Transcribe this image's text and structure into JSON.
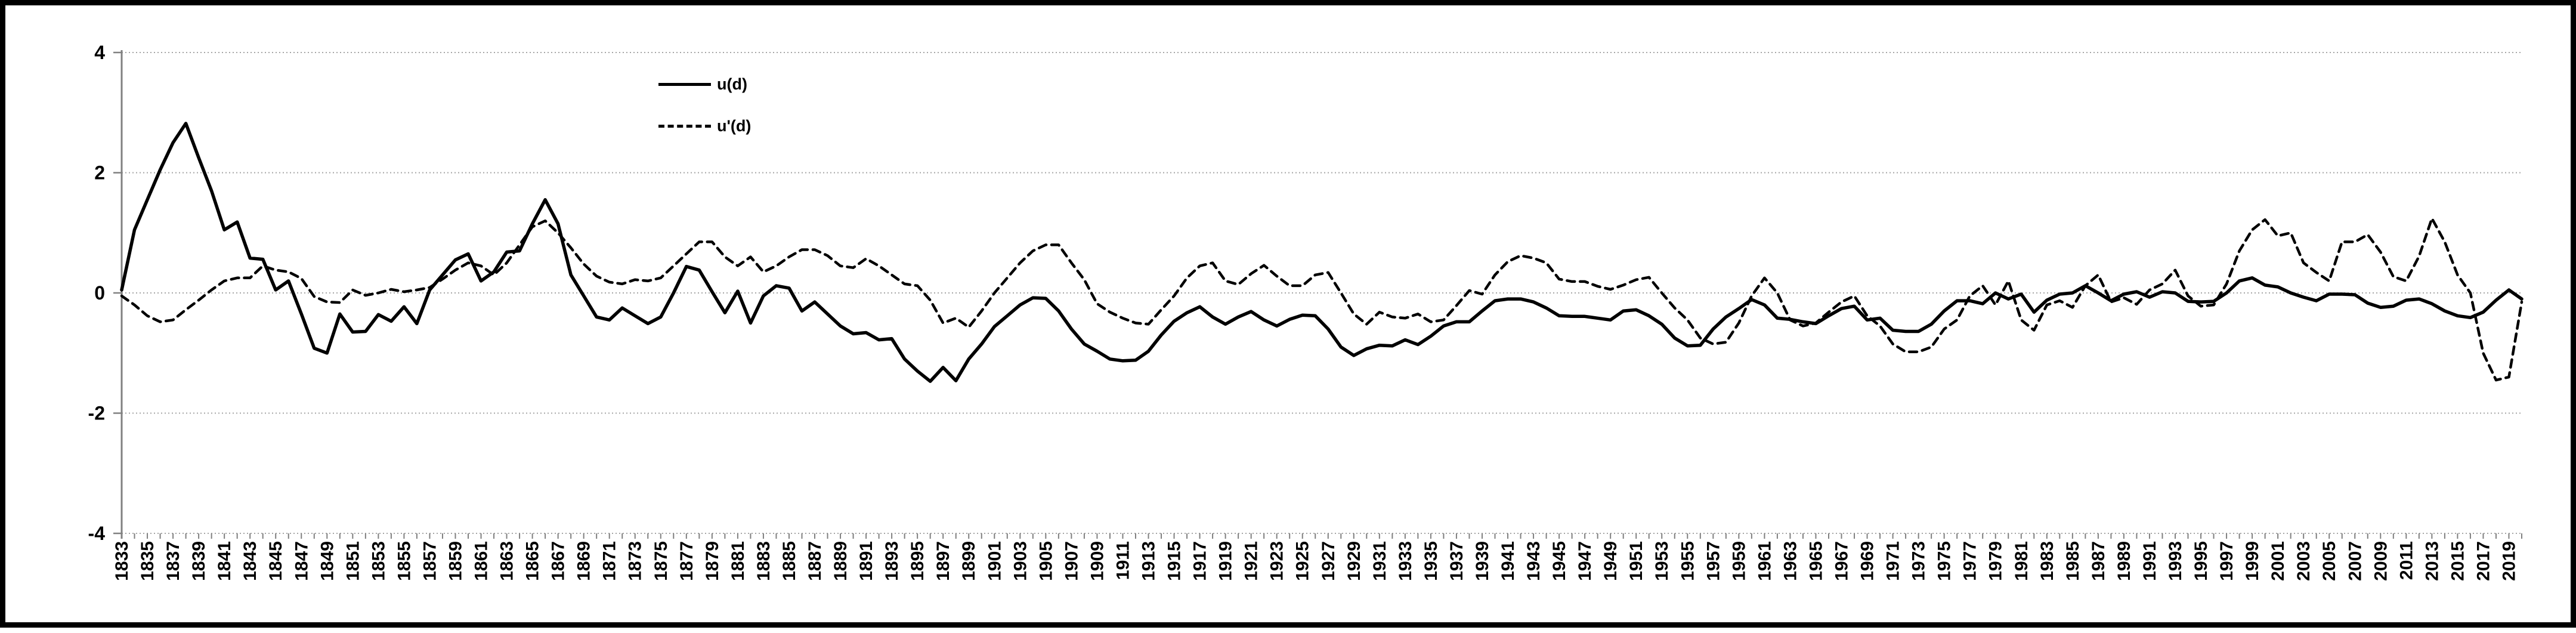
{
  "chart_data": {
    "type": "line",
    "title": "",
    "xlabel": "",
    "ylabel": "",
    "x_range": [
      1833,
      2020
    ],
    "x_step": 1,
    "ylim": [
      -4,
      4
    ],
    "grid": true,
    "legend_position": "top-center-left",
    "ytick_values": [
      4,
      2,
      0,
      -2,
      -4
    ],
    "ytick_labels": [
      "4",
      "2",
      "0",
      "-2",
      "-4"
    ],
    "xtick_labels": [
      "1833",
      "1835",
      "1837",
      "1839",
      "1841",
      "1843",
      "1845",
      "1847",
      "1849",
      "1851",
      "1853",
      "1855",
      "1857",
      "1859",
      "1861",
      "1863",
      "1865",
      "1867",
      "1869",
      "1871",
      "1873",
      "1875",
      "1877",
      "1879",
      "1881",
      "1883",
      "1885",
      "1887",
      "1889",
      "1891",
      "1893",
      "1895",
      "1897",
      "1899",
      "1901",
      "1903",
      "1905",
      "1907",
      "1909",
      "1911",
      "1913",
      "1915",
      "1917",
      "1919",
      "1921",
      "1923",
      "1925",
      "1927",
      "1929",
      "1931",
      "1933",
      "1935",
      "1937",
      "1939",
      "1941",
      "1943",
      "1945",
      "1947",
      "1949",
      "1951",
      "1953",
      "1955",
      "1957",
      "1959",
      "1961",
      "1963",
      "1965",
      "1967",
      "1969",
      "1971",
      "1973",
      "1975",
      "1977",
      "1979",
      "1981",
      "1983",
      "1985",
      "1987",
      "1989",
      "1991",
      "1993",
      "1995",
      "1997",
      "1999",
      "2001",
      "2003",
      "2005",
      "2007",
      "2009",
      "2011",
      "2013",
      "2015",
      "2017",
      "2019"
    ],
    "series": [
      {
        "name": "u(d)",
        "style": "solid",
        "color": "#000000",
        "values": [
          0.05,
          1.05,
          1.55,
          2.05,
          2.5,
          2.82,
          2.25,
          1.7,
          1.05,
          1.18,
          0.58,
          0.56,
          0.05,
          0.2,
          -0.35,
          -0.92,
          -1.0,
          -0.35,
          -0.65,
          -0.64,
          -0.36,
          -0.47,
          -0.23,
          -0.51,
          0.05,
          0.3,
          0.55,
          0.65,
          0.2,
          0.35,
          0.68,
          0.7,
          1.15,
          1.55,
          1.15,
          0.3,
          -0.05,
          -0.4,
          -0.45,
          -0.25,
          -0.38,
          -0.51,
          -0.4,
          0.0,
          0.44,
          0.38,
          0.02,
          -0.33,
          0.03,
          -0.5,
          -0.05,
          0.12,
          0.08,
          -0.3,
          -0.15,
          -0.35,
          -0.55,
          -0.68,
          -0.66,
          -0.78,
          -0.76,
          -1.1,
          -1.3,
          -1.47,
          -1.24,
          -1.46,
          -1.1,
          -0.85,
          -0.56,
          -0.38,
          -0.2,
          -0.08,
          -0.09,
          -0.3,
          -0.6,
          -0.85,
          -0.97,
          -1.1,
          -1.13,
          -1.12,
          -0.97,
          -0.7,
          -0.47,
          -0.33,
          -0.23,
          -0.4,
          -0.52,
          -0.4,
          -0.31,
          -0.45,
          -0.55,
          -0.44,
          -0.37,
          -0.38,
          -0.6,
          -0.9,
          -1.04,
          -0.93,
          -0.87,
          -0.88,
          -0.78,
          -0.86,
          -0.72,
          -0.55,
          -0.48,
          -0.48,
          -0.3,
          -0.13,
          -0.1,
          -0.1,
          -0.15,
          -0.25,
          -0.38,
          -0.39,
          -0.39,
          -0.42,
          -0.45,
          -0.3,
          -0.28,
          -0.38,
          -0.52,
          -0.75,
          -0.88,
          -0.87,
          -0.6,
          -0.4,
          -0.26,
          -0.11,
          -0.2,
          -0.42,
          -0.44,
          -0.48,
          -0.51,
          -0.38,
          -0.26,
          -0.22,
          -0.45,
          -0.42,
          -0.62,
          -0.64,
          -0.64,
          -0.52,
          -0.3,
          -0.13,
          -0.13,
          -0.18,
          0.0,
          -0.1,
          -0.02,
          -0.32,
          -0.12,
          -0.02,
          0.0,
          0.12,
          0.0,
          -0.13,
          -0.02,
          0.02,
          -0.07,
          0.02,
          0.0,
          -0.14,
          -0.15,
          -0.14,
          0.0,
          0.2,
          0.25,
          0.13,
          0.1,
          0.0,
          -0.07,
          -0.13,
          -0.02,
          -0.02,
          -0.03,
          -0.17,
          -0.24,
          -0.22,
          -0.12,
          -0.1,
          -0.18,
          -0.3,
          -0.38,
          -0.41,
          -0.32,
          -0.12,
          0.05,
          -0.1
        ]
      },
      {
        "name": "u'(d)",
        "style": "dashed",
        "color": "#000000",
        "values": [
          -0.05,
          -0.2,
          -0.38,
          -0.48,
          -0.45,
          -0.28,
          -0.12,
          0.05,
          0.2,
          0.25,
          0.25,
          0.45,
          0.38,
          0.35,
          0.24,
          -0.06,
          -0.15,
          -0.16,
          0.05,
          -0.04,
          0.0,
          0.06,
          0.02,
          0.05,
          0.09,
          0.23,
          0.38,
          0.5,
          0.45,
          0.3,
          0.5,
          0.8,
          1.1,
          1.2,
          1.0,
          0.75,
          0.48,
          0.28,
          0.18,
          0.15,
          0.22,
          0.2,
          0.25,
          0.45,
          0.65,
          0.85,
          0.85,
          0.6,
          0.45,
          0.6,
          0.35,
          0.45,
          0.6,
          0.72,
          0.72,
          0.62,
          0.45,
          0.42,
          0.57,
          0.45,
          0.3,
          0.15,
          0.12,
          -0.12,
          -0.5,
          -0.42,
          -0.57,
          -0.3,
          0.0,
          0.25,
          0.5,
          0.7,
          0.8,
          0.8,
          0.5,
          0.22,
          -0.18,
          -0.32,
          -0.42,
          -0.5,
          -0.52,
          -0.28,
          -0.05,
          0.25,
          0.45,
          0.5,
          0.2,
          0.14,
          0.32,
          0.46,
          0.28,
          0.12,
          0.12,
          0.3,
          0.34,
          0.0,
          -0.35,
          -0.52,
          -0.32,
          -0.4,
          -0.42,
          -0.35,
          -0.48,
          -0.45,
          -0.21,
          0.04,
          -0.02,
          0.3,
          0.52,
          0.62,
          0.58,
          0.5,
          0.23,
          0.19,
          0.19,
          0.11,
          0.06,
          0.13,
          0.22,
          0.26,
          0.0,
          -0.25,
          -0.45,
          -0.75,
          -0.85,
          -0.82,
          -0.5,
          -0.05,
          0.25,
          0.0,
          -0.45,
          -0.55,
          -0.5,
          -0.32,
          -0.15,
          -0.05,
          -0.38,
          -0.55,
          -0.85,
          -0.98,
          -0.98,
          -0.9,
          -0.6,
          -0.45,
          -0.05,
          0.12,
          -0.2,
          0.2,
          -0.45,
          -0.62,
          -0.2,
          -0.13,
          -0.24,
          0.12,
          0.3,
          -0.15,
          -0.08,
          -0.19,
          0.05,
          0.15,
          0.38,
          -0.05,
          -0.22,
          -0.2,
          0.15,
          0.7,
          1.05,
          1.22,
          0.95,
          1.0,
          0.5,
          0.34,
          0.2,
          0.85,
          0.85,
          0.97,
          0.68,
          0.27,
          0.2,
          0.61,
          1.24,
          0.85,
          0.3,
          0.0,
          -1.0,
          -1.45,
          -1.4,
          -0.15
        ]
      }
    ]
  },
  "legend": {
    "items": [
      {
        "label": "u(d)",
        "style": "solid"
      },
      {
        "label": "u'(d)",
        "style": "dashed"
      }
    ]
  },
  "colors": {
    "series": "#000000",
    "gridline": "#a6a6a6",
    "axis": "#808080",
    "frame": "#000000",
    "background": "#ffffff"
  }
}
